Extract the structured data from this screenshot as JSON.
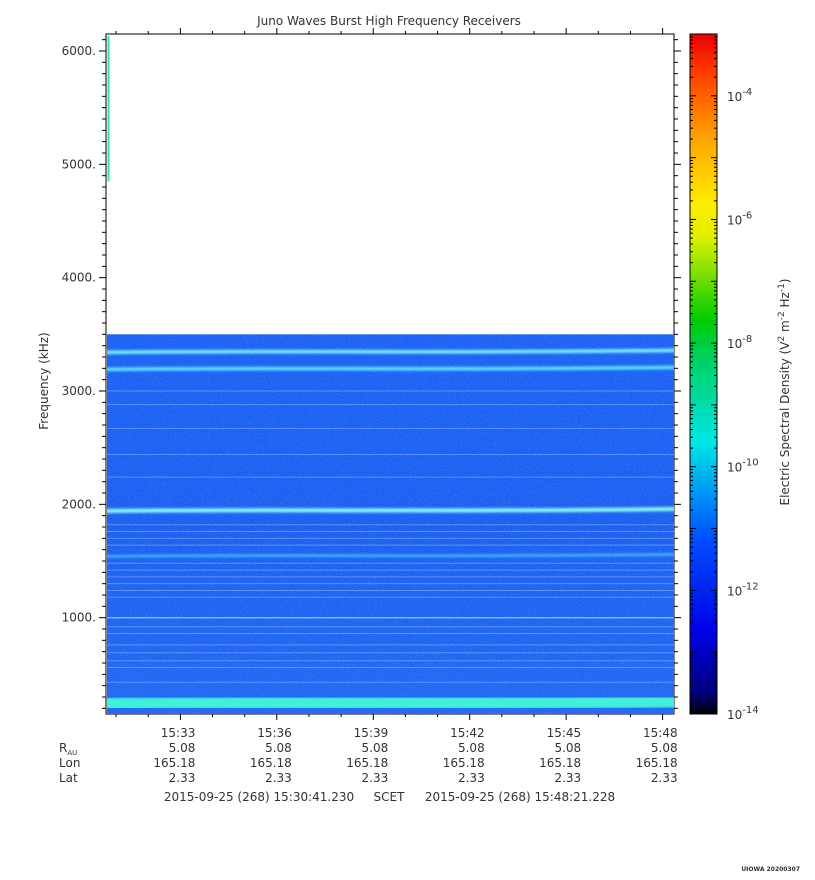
{
  "chart_data": {
    "type": "heatmap",
    "title": "Juno Waves Burst High Frequency Receivers",
    "ylabel": "Frequency (kHz)",
    "yticks": [
      1000,
      2000,
      3000,
      4000,
      5000,
      6000
    ],
    "ytick_labels": [
      "1000.",
      "2000.",
      "3000.",
      "4000.",
      "5000.",
      "6000."
    ],
    "ylim": [
      150,
      6150
    ],
    "x_start_label": "2015-09-25 (268) 15:30:41.230",
    "x_end_label": "2015-09-25 (268) 15:48:21.228",
    "x_center_label": "SCET",
    "xlim_minutes": [
      30.687,
      48.354
    ],
    "xticks": [
      "15:33",
      "15:36",
      "15:39",
      "15:42",
      "15:45",
      "15:48"
    ],
    "xtick_minutes": [
      33,
      36,
      39,
      42,
      45,
      48
    ],
    "ephemeris": [
      {
        "label": "R",
        "sub": "AU",
        "values": [
          "5.08",
          "5.08",
          "5.08",
          "5.08",
          "5.08",
          "5.08"
        ]
      },
      {
        "label": "Lon",
        "sub": "",
        "values": [
          "165.18",
          "165.18",
          "165.18",
          "165.18",
          "165.18",
          "165.18"
        ]
      },
      {
        "label": "Lat",
        "sub": "",
        "values": [
          "2.33",
          "2.33",
          "2.33",
          "2.33",
          "2.33",
          "2.33"
        ]
      }
    ],
    "data_freq_range_khz": [
      150,
      3500
    ],
    "bands_khz": [
      3350,
      3200,
      1950,
      1550,
      250
    ],
    "colorbar": {
      "label": "Electric Spectral Density (V",
      "label_sup1": "2",
      "label_mid": " m",
      "label_sup2": "-2",
      "label_mid2": " Hz",
      "label_sup3": "-1",
      "label_end": ")",
      "exponents": [
        -4,
        -6,
        -8,
        -10,
        -12,
        -14
      ],
      "range_log10": [
        -14,
        -3
      ],
      "scale": "log"
    }
  },
  "footer_tag": "UIOWA 20200307"
}
